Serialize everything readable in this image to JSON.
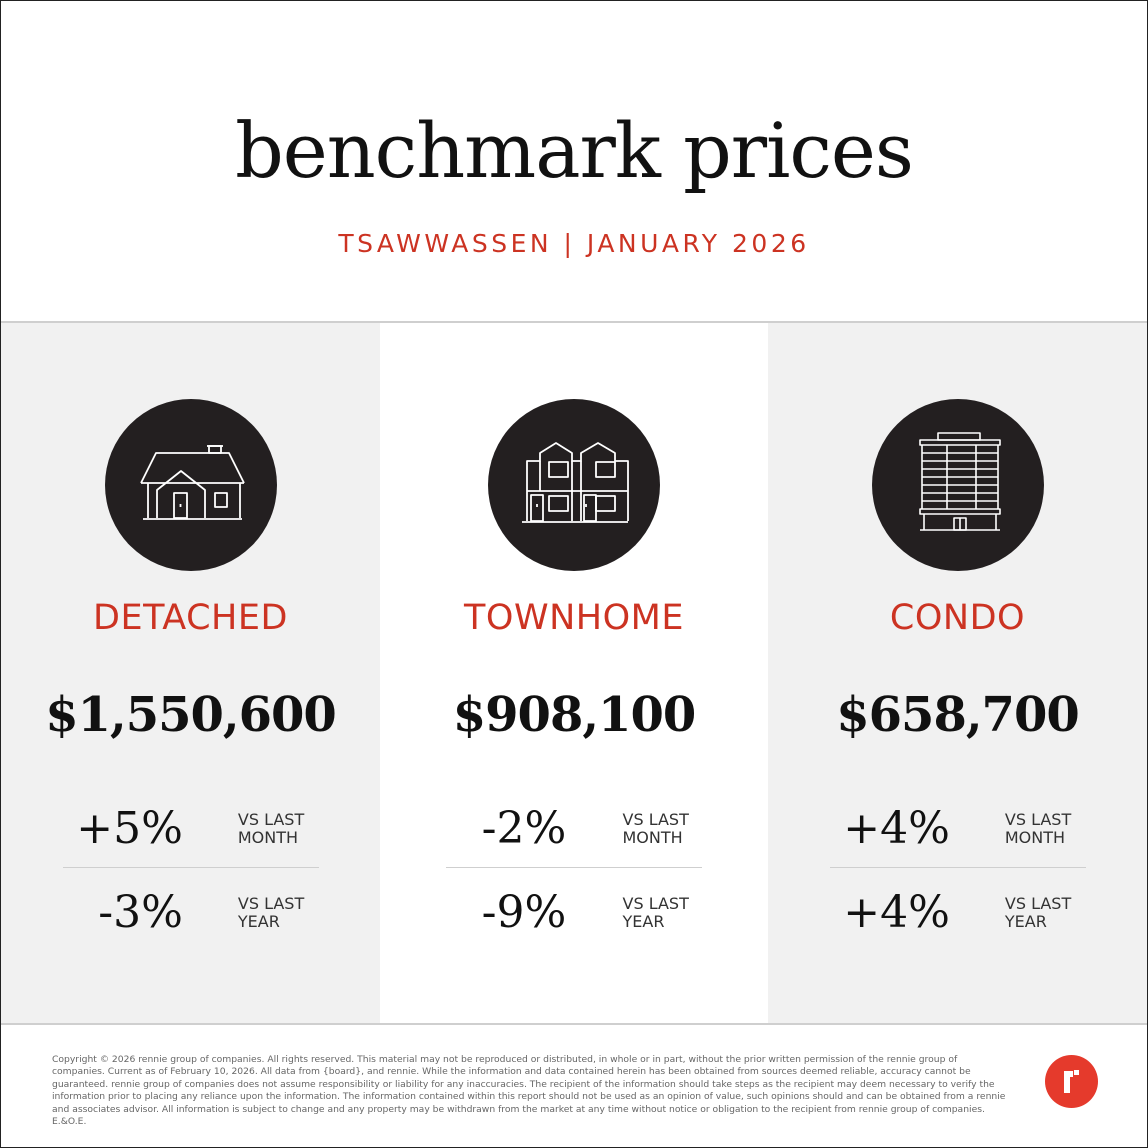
{
  "header": {
    "title": "benchmark prices",
    "subtitle": "TSAWWASSEN | JANUARY 2026"
  },
  "colors": {
    "accent": "#cc3322",
    "icon_circle": "#231f20",
    "panel_gray": "#f1f1f1",
    "logo": "#e53a2c"
  },
  "panels": [
    {
      "icon": "detached-house-icon",
      "type": "DETACHED",
      "price": "$1,550,600",
      "stats": [
        {
          "pct": "+5%",
          "label": "VS LAST\nMONTH"
        },
        {
          "pct": "-3%",
          "label": "VS LAST\nYEAR"
        }
      ]
    },
    {
      "icon": "townhome-icon",
      "type": "TOWNHOME",
      "price": "$908,100",
      "stats": [
        {
          "pct": "-2%",
          "label": "VS LAST\nMONTH"
        },
        {
          "pct": "-9%",
          "label": "VS LAST\nYEAR"
        }
      ]
    },
    {
      "icon": "condo-building-icon",
      "type": "CONDO",
      "price": "$658,700",
      "stats": [
        {
          "pct": "+4%",
          "label": "VS LAST\nMONTH"
        },
        {
          "pct": "+4%",
          "label": "VS LAST\nYEAR"
        }
      ]
    }
  ],
  "footer": {
    "disclaimer": "Copyright © 2026 rennie group of companies. All rights reserved. This material may not be reproduced or distributed, in whole or in part, without the prior written permission of the rennie group of companies. Current as of February 10, 2026. All data from {board}, and rennie. While the information and data contained herein has been obtained from sources deemed reliable, accuracy cannot be guaranteed. rennie group of companies does not assume responsibility or liability for any inaccuracies. The recipient of the information should take steps as the recipient may deem necessary to verify the information prior to placing any reliance upon the information. The information contained within this report should not be used as an opinion of value, such opinions should and can be obtained from a rennie and associates advisor. All information is subject to change and any property may be withdrawn from the market at any time without notice or obligation to the recipient from rennie group of companies. E.&O.E.",
    "logo_icon": "rennie-logo-icon"
  }
}
